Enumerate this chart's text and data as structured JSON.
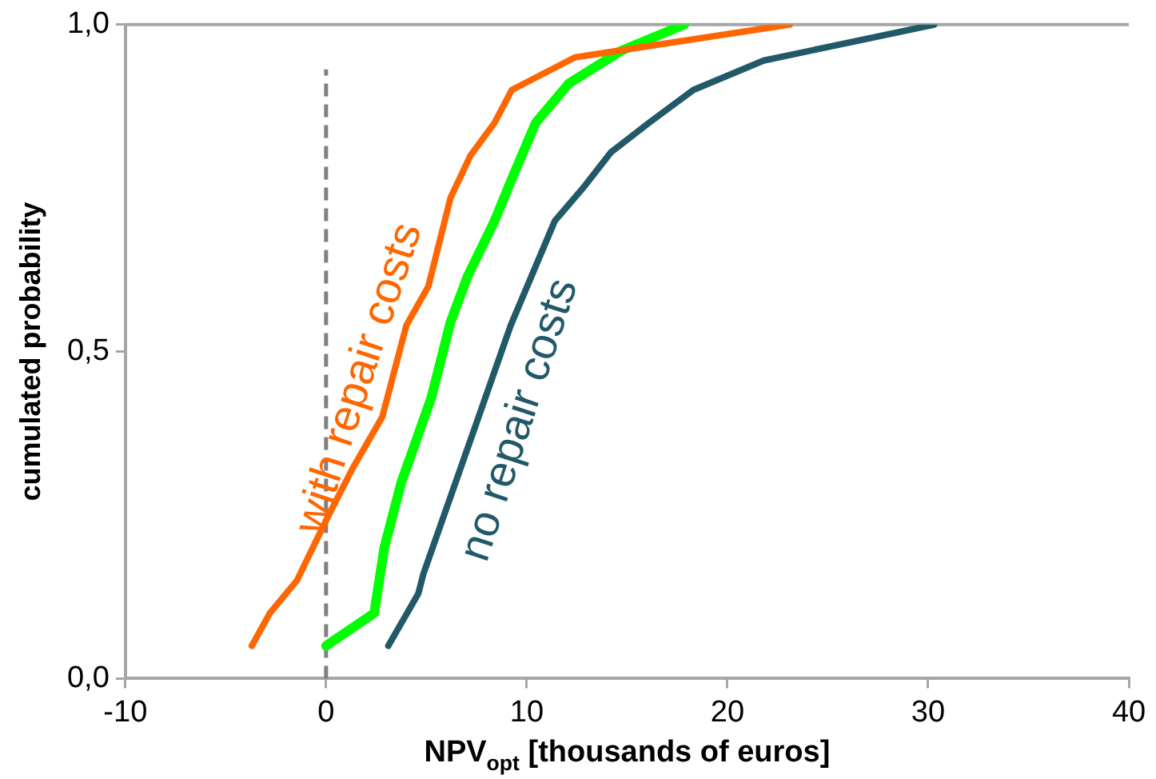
{
  "chart_data": {
    "type": "line",
    "xlabel": "NPV$_{opt}$ [thousands of euros]",
    "ylabel": "cumulated probability",
    "xlim": [
      -10,
      40
    ],
    "xticks": [
      -10,
      0,
      10,
      20,
      30,
      40
    ],
    "ylim": [
      0,
      1
    ],
    "yticks": [
      {
        "value": 0,
        "label": "0,0"
      },
      {
        "value": 0.5,
        "label": "0,5"
      },
      {
        "value": 1,
        "label": "1,0"
      }
    ],
    "grid": false,
    "legend": false,
    "marker": "none",
    "line_style": "solid",
    "ref_lines": [
      {
        "axis": "x",
        "value": 0,
        "color": "#808080",
        "line_style": "dashed"
      }
    ],
    "series": [
      {
        "name": "with repair costs",
        "color": "#ff6600",
        "x": [
          -3.7,
          -2.8,
          -1.45,
          0.05,
          1.3,
          2.8,
          4.0,
          5.1,
          6.2,
          7.2,
          8.4,
          9.25,
          12.4,
          23.1
        ],
        "values": [
          0.05,
          0.1,
          0.15,
          0.245,
          0.32,
          0.4,
          0.54,
          0.6,
          0.735,
          0.8,
          0.85,
          0.9,
          0.95,
          1.0
        ]
      },
      {
        "color": "#00ff00",
        "x": [
          0,
          2.4,
          2.9,
          3.75,
          5.25,
          6.2,
          7.05,
          8.4,
          9.2,
          10.45,
          12.1,
          14.7,
          17.85
        ],
        "values": [
          0.05,
          0.1,
          0.2,
          0.3,
          0.43,
          0.545,
          0.615,
          0.7,
          0.76,
          0.85,
          0.91,
          0.96,
          1.0
        ]
      },
      {
        "name": "no repair costs",
        "color": "#215968",
        "x": [
          3.1,
          4.6,
          4.85,
          7.6,
          9.2,
          11.4,
          12.8,
          14.2,
          16.1,
          18.3,
          21.8,
          30.3
        ],
        "values": [
          0.05,
          0.13,
          0.16,
          0.4,
          0.54,
          0.7,
          0.75,
          0.805,
          0.85,
          0.9,
          0.945,
          1.0
        ]
      }
    ]
  }
}
